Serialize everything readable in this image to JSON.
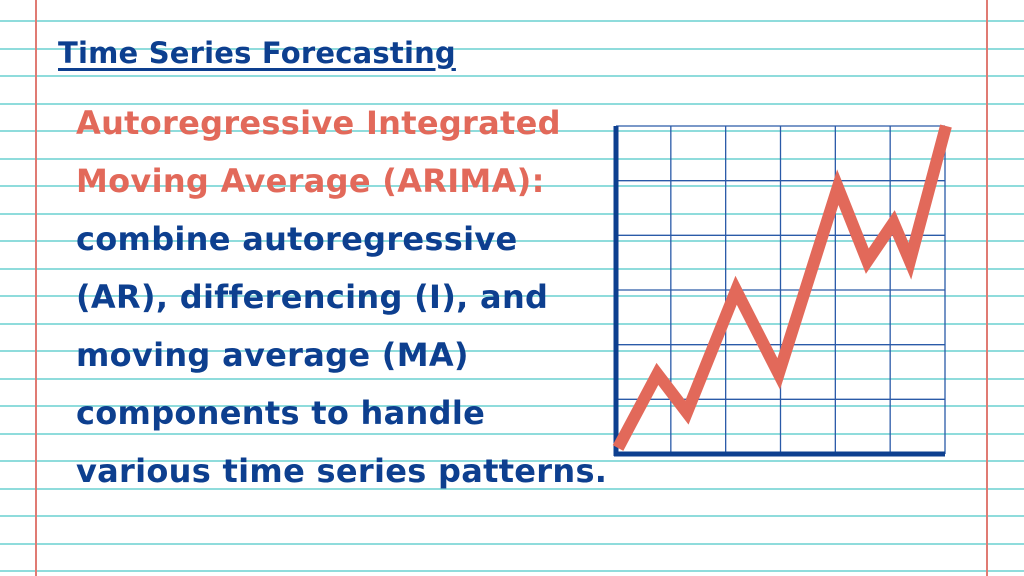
{
  "colors": {
    "ruled_line": "#8fdcdc",
    "margin_line": "#e07b73",
    "title": "#0d3f8f",
    "heading_accent": "#e2695a",
    "body_text": "#0d3f8f",
    "grid": "#2a5aa8",
    "axis": "#0d3f8f",
    "trend_line": "#e2695a"
  },
  "title": "Time Series Forecasting",
  "heading_lines": [
    "Autoregressive Integrated",
    "Moving Average (ARIMA):"
  ],
  "description_lines": [
    "combine autoregressive",
    "(AR), differencing (I), and",
    "moving average (MA)",
    "components to handle",
    "various time series patterns."
  ],
  "illustration": {
    "icon": "upward-trend-line-chart-icon",
    "grid_columns": 6,
    "grid_rows": 6,
    "trend_points": [
      [
        0,
        0
      ],
      [
        0.12,
        0.23
      ],
      [
        0.21,
        0.11
      ],
      [
        0.36,
        0.49
      ],
      [
        0.49,
        0.23
      ],
      [
        0.67,
        0.81
      ],
      [
        0.76,
        0.58
      ],
      [
        0.84,
        0.7
      ],
      [
        0.89,
        0.58
      ],
      [
        1,
        1
      ]
    ]
  }
}
